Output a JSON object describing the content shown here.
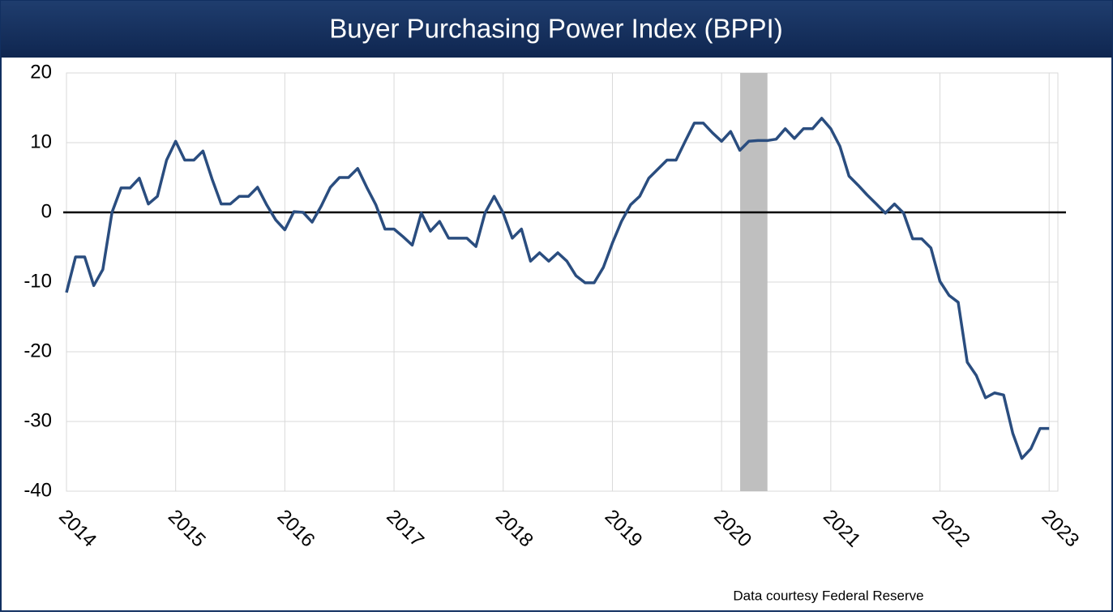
{
  "chart_data": {
    "type": "line",
    "title": "Buyer Purchasing Power Index (BPPI)",
    "source": "Data courtesy Federal Reserve",
    "x": [
      2014,
      2014.083,
      2014.167,
      2014.25,
      2014.333,
      2014.417,
      2014.5,
      2014.583,
      2014.667,
      2014.75,
      2014.833,
      2014.917,
      2015,
      2015.083,
      2015.167,
      2015.25,
      2015.333,
      2015.417,
      2015.5,
      2015.583,
      2015.667,
      2015.75,
      2015.833,
      2015.917,
      2016,
      2016.083,
      2016.167,
      2016.25,
      2016.333,
      2016.417,
      2016.5,
      2016.583,
      2016.667,
      2016.75,
      2016.833,
      2016.917,
      2017,
      2017.083,
      2017.167,
      2017.25,
      2017.333,
      2017.417,
      2017.5,
      2017.583,
      2017.667,
      2017.75,
      2017.833,
      2017.917,
      2018,
      2018.083,
      2018.167,
      2018.25,
      2018.333,
      2018.417,
      2018.5,
      2018.583,
      2018.667,
      2018.75,
      2018.833,
      2018.917,
      2019,
      2019.083,
      2019.167,
      2019.25,
      2019.333,
      2019.417,
      2019.5,
      2019.583,
      2019.667,
      2019.75,
      2019.833,
      2019.917,
      2020,
      2020.083,
      2020.167,
      2020.25,
      2020.333,
      2020.417,
      2020.5,
      2020.583,
      2020.667,
      2020.75,
      2020.833,
      2020.917,
      2021,
      2021.083,
      2021.167,
      2021.25,
      2021.333,
      2021.417,
      2021.5,
      2021.583,
      2021.667,
      2021.75,
      2021.833,
      2021.917,
      2022,
      2022.083,
      2022.167,
      2022.25,
      2022.333,
      2022.417,
      2022.5,
      2022.583,
      2022.667,
      2022.75,
      2022.833,
      2022.917,
      2023
    ],
    "series": [
      {
        "color": "#2a4d7f",
        "values": [
          -11.5,
          -6.4,
          -6.4,
          -10.5,
          -8.2,
          0,
          3.5,
          3.5,
          4.9,
          1.2,
          2.3,
          7.5,
          10.2,
          7.5,
          7.5,
          8.8,
          4.8,
          1.2,
          1.2,
          2.3,
          2.3,
          3.6,
          1.1,
          -1.1,
          -2.5,
          0.1,
          0,
          -1.4,
          0.9,
          3.6,
          5,
          5,
          6.3,
          3.6,
          1.1,
          -2.4,
          -2.4,
          -3.5,
          -4.7,
          -0.1,
          -2.7,
          -1.3,
          -3.7,
          -3.7,
          -3.7,
          -4.9,
          -0.1,
          2.3,
          -0.1,
          -3.7,
          -2.4,
          -7,
          -5.8,
          -7,
          -5.8,
          -7,
          -9.1,
          -10.1,
          -10.1,
          -7.9,
          -4.4,
          -1.3,
          1.1,
          2.3,
          4.9,
          6.2,
          7.5,
          7.5,
          10.2,
          12.8,
          12.8,
          11.4,
          10.2,
          11.6,
          8.9,
          10.2,
          10.3,
          10.3,
          10.5,
          12,
          10.6,
          12,
          12,
          13.5,
          12,
          9.5,
          5.2,
          3.9,
          2.5,
          1.2,
          -0.1,
          1.2,
          -0.1,
          -3.8,
          -3.8,
          -5.1,
          -9.9,
          -11.9,
          -12.9,
          -21.5,
          -23.4,
          -26.6,
          -25.9,
          -26.2,
          -31.7,
          -35.3,
          -33.9,
          -31,
          -31
        ]
      }
    ],
    "recession": [
      2020.17,
      2020.42
    ],
    "xlim": [
      2014,
      2023.08
    ],
    "xticks": [
      2014,
      2015,
      2016,
      2017,
      2018,
      2019,
      2020,
      2021,
      2022,
      2023
    ],
    "ylim": [
      -40,
      20
    ],
    "yticks": [
      -40,
      -30,
      -20,
      -10,
      0,
      10,
      20
    ],
    "grid": true
  }
}
